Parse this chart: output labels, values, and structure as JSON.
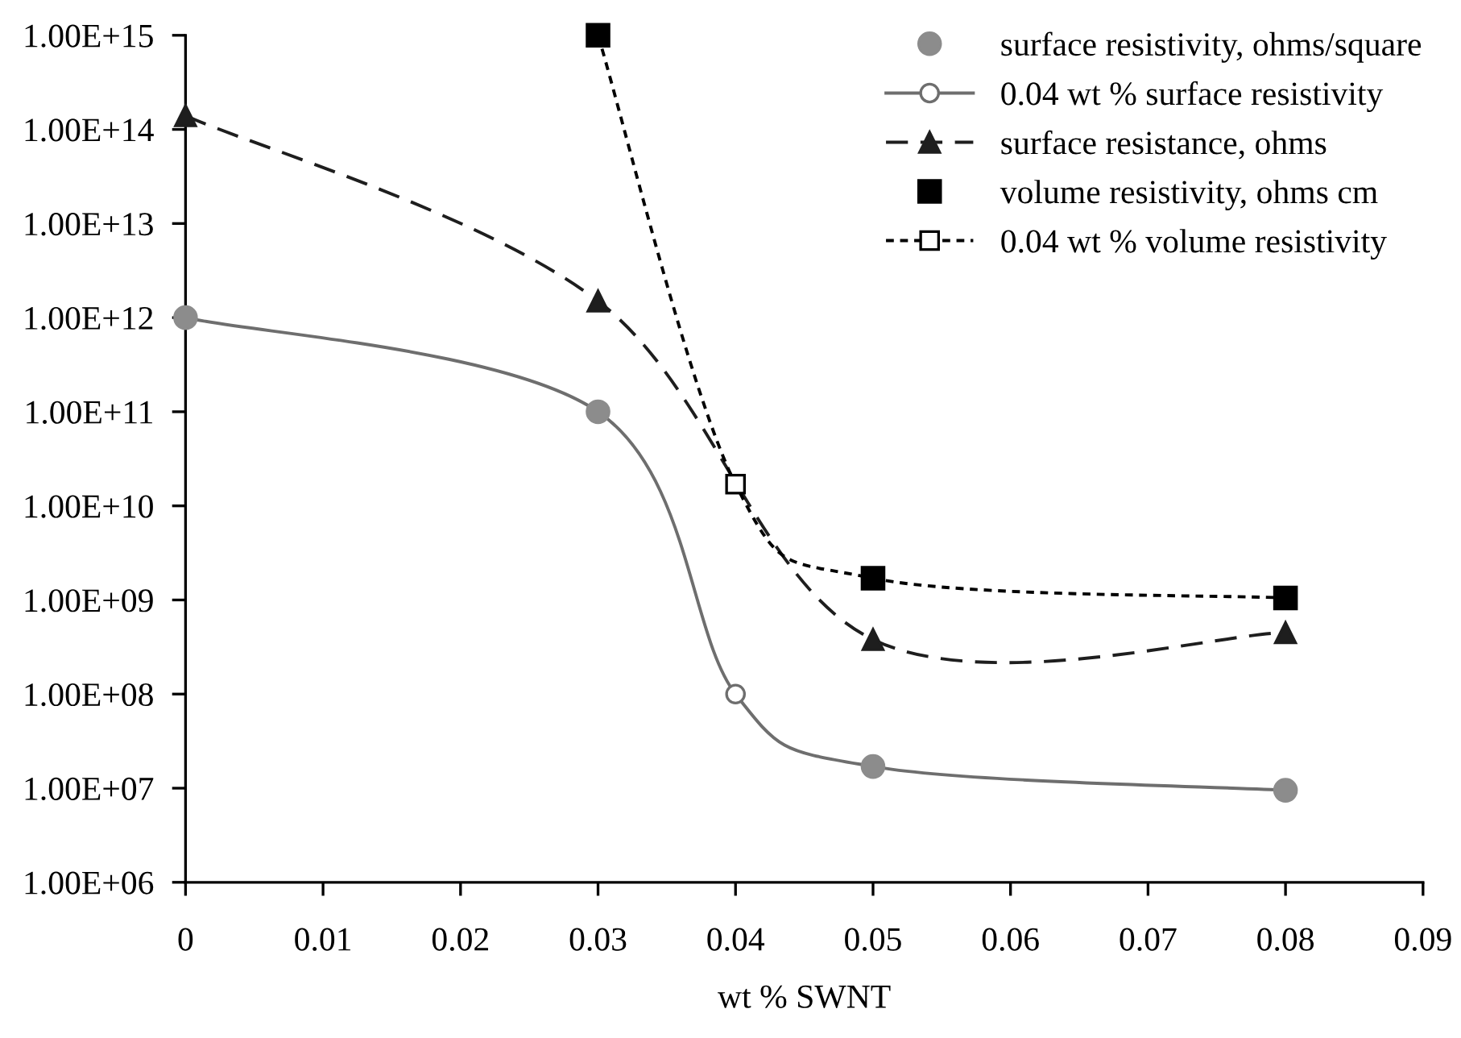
{
  "chart_data": {
    "type": "line",
    "xlabel": "wt % SWNT",
    "log": "y",
    "xlim": [
      0,
      0.09
    ],
    "xticks": [
      0,
      0.01,
      0.02,
      0.03,
      0.04,
      0.05,
      0.06,
      0.07,
      0.08,
      0.09
    ],
    "ylim": [
      1000000.0,
      1000000000000000.0
    ],
    "yticks": [
      {
        "value": 1000000.0,
        "label": "1.00E+06"
      },
      {
        "value": 10000000.0,
        "label": "1.00E+07"
      },
      {
        "value": 100000000.0,
        "label": "1.00E+08"
      },
      {
        "value": 1000000000.0,
        "label": "1.00E+09"
      },
      {
        "value": 10000000000.0,
        "label": "1.00E+10"
      },
      {
        "value": 100000000000.0,
        "label": "1.00E+11"
      },
      {
        "value": 1000000000000.0,
        "label": "1.00E+12"
      },
      {
        "value": 10000000000000.0,
        "label": "1.00E+13"
      },
      {
        "value": 100000000000000.0,
        "label": "1.00E+14"
      },
      {
        "value": 1000000000000000.0,
        "label": "1.00E+15"
      }
    ],
    "grid": false,
    "legend": "top right",
    "series": [
      {
        "name": "0.04 wt % surface resistivity",
        "type": "line",
        "color": "#6e6e6e",
        "marker": "circle",
        "line_style": "solid",
        "x": [
          0,
          0.03,
          0.04,
          0.05,
          0.08
        ],
        "values": [
          1000000000000.0,
          100000000000.0,
          100000000.0,
          17000000.0,
          9500000.0
        ]
      },
      {
        "name": "surface resistivity, ohms/square",
        "type": "scatter",
        "color": "#8c8c8c",
        "marker": "circle",
        "x": [
          0,
          0.03,
          0.05,
          0.08
        ],
        "values": [
          1000000000000.0,
          100000000000.0,
          17000000.0,
          9500000.0
        ]
      },
      {
        "name": "surface resistance, ohms",
        "type": "line",
        "color": "#1e1e1e",
        "marker": "triangle",
        "line_style": "dashed",
        "x": [
          0,
          0.03,
          0.05,
          0.08
        ],
        "values": [
          140000000000000.0,
          1500000000000.0,
          380000000.0,
          450000000.0
        ]
      },
      {
        "name": "0.04 wt % volume resistivity",
        "type": "line",
        "color": "#000000",
        "marker": "square",
        "line_style": "dotted",
        "x": [
          0.03,
          0.04,
          0.05,
          0.08
        ],
        "values": [
          1000000000000000.0,
          17000000000.0,
          1700000000.0,
          1050000000.0
        ]
      },
      {
        "name": "volume resistivity, ohms cm",
        "type": "scatter",
        "color": "#000000",
        "marker": "square",
        "x": [
          0.03,
          0.05,
          0.08
        ],
        "values": [
          1000000000000000.0,
          1700000000.0,
          1050000000.0
        ]
      }
    ]
  }
}
